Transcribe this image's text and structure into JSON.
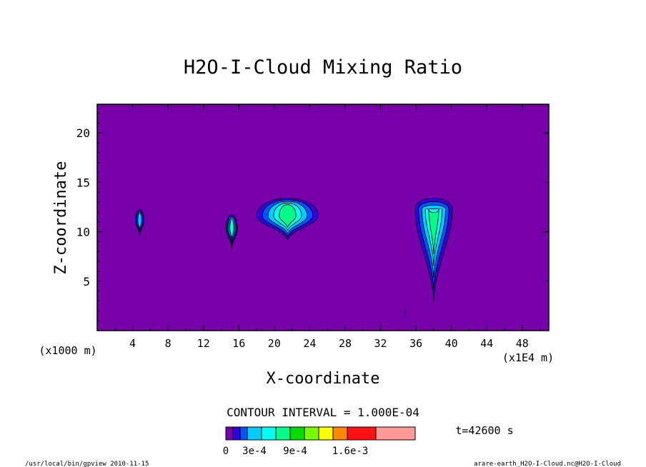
{
  "chart_data": {
    "type": "contour",
    "title": "H2O-I-Cloud Mixing Ratio",
    "xlabel": "X-coordinate",
    "ylabel": "Z-coordinate",
    "x_units": "(x1E4 m)",
    "y_units": "(x1000 m)",
    "x_ticks": [
      4,
      8,
      12,
      16,
      20,
      24,
      28,
      32,
      36,
      40,
      44,
      48
    ],
    "y_ticks": [
      5,
      10,
      15,
      20
    ],
    "xlim": [
      0,
      51
    ],
    "ylim": [
      0,
      22.9
    ],
    "contour_interval": "CONTOUR INTERVAL = 1.000E-04",
    "time_label": "t=42600 s",
    "colorbar": {
      "colors": [
        "#7700aa",
        "#3300dd",
        "#0055ff",
        "#00ccff",
        "#00ffee",
        "#00ff88",
        "#00dd00",
        "#77ff00",
        "#ffff00",
        "#ff8800",
        "#ff1111",
        "#ff9999"
      ],
      "labels": [
        "0",
        "3e-4",
        "9e-4",
        "1.6e-3"
      ],
      "label_levels": [
        0,
        3,
        9,
        16
      ]
    },
    "background_color": "#7700aa",
    "cloud_features": [
      {
        "x_center": 4.8,
        "z_top": 12.6,
        "z_bottom": 9.6,
        "max_level": 3
      },
      {
        "x_center": 15.2,
        "z_top": 12.2,
        "z_bottom": 8.4,
        "max_level": 4
      },
      {
        "x_center": 21.5,
        "z_top": 14.0,
        "z_bottom": 9.2,
        "max_level": 5
      },
      {
        "x_center": 38.0,
        "z_top": 13.8,
        "z_bottom": 3.0,
        "max_level": 5
      }
    ]
  },
  "footer": {
    "left": "/usr/local/bin/gpview  2010-11-15",
    "right": "arare-earth_H2O-I-Cloud.nc@H2O-I-Cloud"
  }
}
